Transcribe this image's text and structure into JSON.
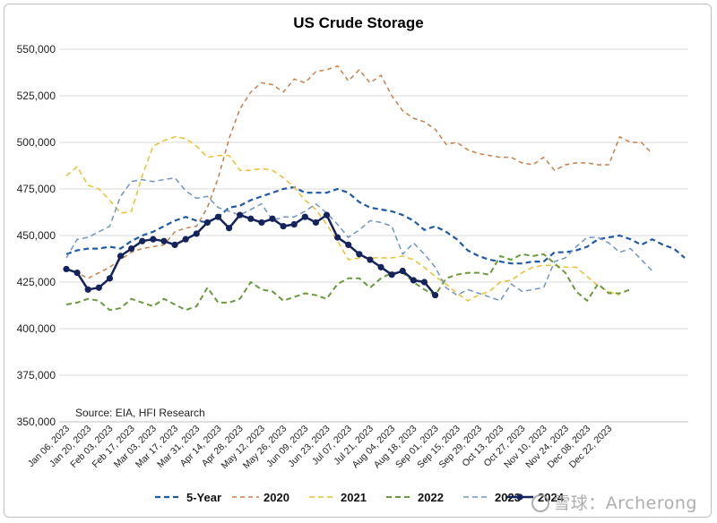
{
  "chart_data": {
    "type": "line",
    "title": "US Crude Storage",
    "annotation": "Source: EIA, HFI Research",
    "watermark": "雪球：Archerong",
    "xlabel": "",
    "ylabel": "",
    "ylim": [
      350000,
      550000
    ],
    "yticks": [
      "350,000",
      "375,000",
      "400,000",
      "425,000",
      "450,000",
      "475,000",
      "500,000",
      "525,000",
      "550,000"
    ],
    "xticks": [
      "Jan 06, 2023",
      "Jan 20, 2023",
      "Feb 03, 2023",
      "Feb 17, 2023",
      "Mar 03, 2023",
      "Mar 17, 2023",
      "Mar 31, 2023",
      "Apr 14, 2023",
      "Apr 28, 2023",
      "May 12, 2023",
      "May 26, 2023",
      "Jun 09, 2023",
      "Jun 23, 2023",
      "Jul 07, 2023",
      "Jul 21, 2023",
      "Aug 04, 2023",
      "Aug 18, 2023",
      "Sep 01, 2023",
      "Sep 15, 2023",
      "Sep 29, 2023",
      "Oct 13, 2023",
      "Oct 27, 2023",
      "Nov 10, 2023",
      "Nov 24, 2023",
      "Dec 08, 2023",
      "Dec 22, 2023"
    ],
    "grid": true,
    "legend": "bottom",
    "series": [
      {
        "name": "5-Year",
        "color": "#1f5aa6",
        "dash": "6,4",
        "width": 2.2,
        "marker": false,
        "values": [
          440000,
          442000,
          443000,
          443000,
          444000,
          443000,
          447000,
          450000,
          452000,
          455000,
          458000,
          460000,
          458000,
          457000,
          460000,
          465000,
          466000,
          469000,
          471000,
          473000,
          475000,
          476000,
          473000,
          473000,
          473000,
          475000,
          473000,
          468000,
          465000,
          464000,
          463000,
          461000,
          458000,
          453000,
          455000,
          452000,
          448000,
          442000,
          439000,
          437000,
          436000,
          435000,
          435000,
          436000,
          436000,
          441000,
          441000,
          442000,
          444000,
          448000,
          449000,
          450000,
          448000,
          445000,
          448000,
          445000,
          443000,
          438000
        ]
      },
      {
        "name": "2020",
        "color": "#c87f48",
        "dash": "5,4",
        "width": 1.5,
        "marker": false,
        "values": [
          432000,
          430000,
          427000,
          430000,
          433000,
          437000,
          441000,
          443000,
          444000,
          445000,
          452000,
          454000,
          455000,
          465000,
          481000,
          502000,
          518000,
          527000,
          532000,
          531000,
          527000,
          534000,
          532000,
          538000,
          539000,
          541000,
          533000,
          539000,
          532000,
          536000,
          525000,
          517000,
          513000,
          511000,
          507000,
          499000,
          500000,
          496000,
          494000,
          493000,
          492000,
          492000,
          489000,
          488000,
          492000,
          485000,
          488000,
          489000,
          489000,
          488000,
          488000,
          503000,
          500000,
          500000,
          494000
        ]
      },
      {
        "name": "2021",
        "color": "#ebc02f",
        "dash": "6,4",
        "width": 1.5,
        "marker": false,
        "values": [
          482000,
          487000,
          477000,
          475000,
          469000,
          462000,
          463000,
          482000,
          498000,
          501000,
          503000,
          502000,
          498000,
          492000,
          493000,
          493000,
          485000,
          485000,
          486000,
          485000,
          481000,
          476000,
          469000,
          464000,
          456000,
          447000,
          437000,
          438000,
          438000,
          438000,
          438000,
          439000,
          437000,
          433000,
          428000,
          424000,
          419000,
          415000,
          418000,
          420000,
          425000,
          426000,
          430000,
          433000,
          434000,
          434000,
          433000,
          433000,
          428000,
          423000,
          420000,
          418000
        ]
      },
      {
        "name": "2022",
        "color": "#6a9a3c",
        "dash": "6,4",
        "width": 2.0,
        "marker": false,
        "values": [
          413000,
          414000,
          416000,
          415000,
          410000,
          411000,
          416000,
          414000,
          412000,
          416000,
          413000,
          410000,
          412000,
          422000,
          414000,
          414000,
          416000,
          425000,
          421000,
          420000,
          415000,
          417000,
          419000,
          418000,
          416000,
          424000,
          427000,
          427000,
          422000,
          427000,
          430000,
          430000,
          425000,
          421000,
          418000,
          427000,
          429000,
          430000,
          430000,
          429000,
          439000,
          437000,
          440000,
          439000,
          440000,
          435000,
          430000,
          420000,
          415000,
          424000,
          419000,
          419000,
          421000
        ]
      },
      {
        "name": "2023",
        "color": "#6f95c7",
        "dash": "6,4",
        "width": 1.5,
        "marker": false,
        "values": [
          438000,
          448000,
          449000,
          452000,
          455000,
          471000,
          479000,
          480000,
          479000,
          480000,
          481000,
          474000,
          470000,
          471000,
          465000,
          463000,
          461000,
          464000,
          467000,
          458000,
          460000,
          460000,
          463000,
          467000,
          462000,
          456000,
          449000,
          453000,
          458000,
          457000,
          455000,
          440000,
          446000,
          440000,
          433000,
          422000,
          418000,
          421000,
          419000,
          417000,
          415000,
          424000,
          420000,
          421000,
          422000,
          436000,
          438000,
          444000,
          449000,
          449000,
          446000,
          441000,
          443000,
          437000,
          431000
        ]
      },
      {
        "name": "2024",
        "color": "#14235c",
        "dash": "",
        "width": 2.5,
        "marker": true,
        "values": [
          432000,
          430000,
          421000,
          422000,
          427000,
          439000,
          443000,
          447000,
          448000,
          447000,
          445000,
          448000,
          451000,
          457000,
          460000,
          454000,
          461000,
          459000,
          457000,
          459000,
          455000,
          456000,
          460000,
          457000,
          461000,
          449000,
          445000,
          440000,
          437000,
          433000,
          429000,
          431000,
          426000,
          425000,
          418000
        ]
      }
    ]
  }
}
